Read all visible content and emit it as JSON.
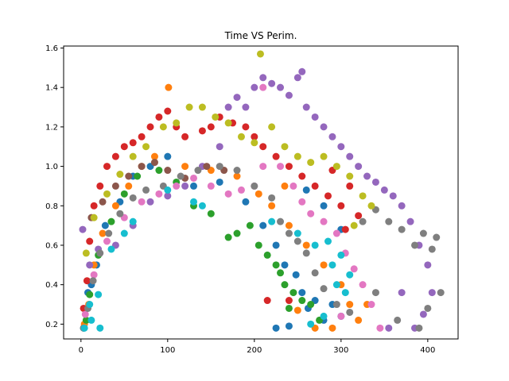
{
  "chart_data": {
    "type": "scatter",
    "title": "Time VS Perim.",
    "xlabel": "",
    "ylabel": "",
    "xlim": [
      -20,
      435
    ],
    "ylim": [
      0.125,
      1.61
    ],
    "xticks": [
      0,
      100,
      200,
      300,
      400
    ],
    "yticks": [
      0.2,
      0.4,
      0.6,
      0.8,
      1.0,
      1.2,
      1.4,
      1.6
    ],
    "xtick_labels": [
      "0",
      "100",
      "200",
      "300",
      "400"
    ],
    "ytick_labels": [
      "0.2",
      "0.4",
      "0.6",
      "0.8",
      "1.0",
      "1.2",
      "1.4",
      "1.6"
    ],
    "grid": false,
    "legend": "none",
    "series": [
      {
        "color": "#1f77b4",
        "points": [
          [
            3,
            0.18
          ],
          [
            8,
            0.36
          ],
          [
            12,
            0.4
          ],
          [
            18,
            0.5
          ],
          [
            28,
            0.7
          ],
          [
            45,
            0.82
          ],
          [
            60,
            0.95
          ],
          [
            80,
            1.0
          ],
          [
            100,
            1.05
          ],
          [
            130,
            0.9
          ],
          [
            160,
            0.92
          ],
          [
            190,
            0.82
          ],
          [
            210,
            0.7
          ],
          [
            225,
            0.6
          ],
          [
            235,
            0.5
          ],
          [
            248,
            0.45
          ],
          [
            255,
            0.36
          ],
          [
            262,
            0.28
          ],
          [
            270,
            0.32
          ],
          [
            280,
            0.22
          ],
          [
            240,
            0.19
          ],
          [
            225,
            0.18
          ],
          [
            290,
            0.3
          ],
          [
            300,
            0.24
          ],
          [
            260,
            0.88
          ],
          [
            280,
            0.8
          ],
          [
            300,
            0.68
          ]
        ]
      },
      {
        "color": "#ff7f0e",
        "points": [
          [
            4,
            0.2
          ],
          [
            9,
            0.3
          ],
          [
            15,
            0.5
          ],
          [
            25,
            0.66
          ],
          [
            40,
            0.8
          ],
          [
            55,
            0.9
          ],
          [
            70,
            1.0
          ],
          [
            85,
            1.05
          ],
          [
            101,
            1.4
          ],
          [
            120,
            1.0
          ],
          [
            150,
            0.98
          ],
          [
            180,
            0.95
          ],
          [
            205,
            0.86
          ],
          [
            220,
            0.8
          ],
          [
            240,
            0.7
          ],
          [
            260,
            0.6
          ],
          [
            280,
            0.5
          ],
          [
            300,
            0.4
          ],
          [
            310,
            0.3
          ],
          [
            320,
            0.22
          ],
          [
            290,
            0.18
          ],
          [
            270,
            0.18
          ],
          [
            250,
            0.27
          ],
          [
            330,
            0.3
          ],
          [
            235,
            0.9
          ]
        ]
      },
      {
        "color": "#2ca02c",
        "points": [
          [
            6,
            0.22
          ],
          [
            10,
            0.35
          ],
          [
            20,
            0.55
          ],
          [
            35,
            0.72
          ],
          [
            50,
            0.86
          ],
          [
            65,
            0.95
          ],
          [
            90,
            0.98
          ],
          [
            110,
            0.92
          ],
          [
            130,
            0.8
          ],
          [
            150,
            0.76
          ],
          [
            170,
            0.64
          ],
          [
            180,
            0.66
          ],
          [
            195,
            0.7
          ],
          [
            205,
            0.6
          ],
          [
            215,
            0.55
          ],
          [
            225,
            0.5
          ],
          [
            235,
            0.4
          ],
          [
            245,
            0.36
          ],
          [
            255,
            0.32
          ],
          [
            265,
            0.3
          ],
          [
            275,
            0.22
          ],
          [
            240,
            0.28
          ],
          [
            230,
            0.46
          ]
        ]
      },
      {
        "color": "#d62728",
        "points": [
          [
            3,
            0.28
          ],
          [
            7,
            0.42
          ],
          [
            10,
            0.62
          ],
          [
            15,
            0.8
          ],
          [
            22,
            0.9
          ],
          [
            30,
            1.0
          ],
          [
            40,
            1.05
          ],
          [
            50,
            1.1
          ],
          [
            60,
            1.12
          ],
          [
            70,
            1.15
          ],
          [
            80,
            1.2
          ],
          [
            90,
            1.25
          ],
          [
            100,
            1.28
          ],
          [
            110,
            1.2
          ],
          [
            120,
            1.15
          ],
          [
            140,
            1.18
          ],
          [
            150,
            1.2
          ],
          [
            160,
            1.25
          ],
          [
            175,
            1.22
          ],
          [
            190,
            1.2
          ],
          [
            200,
            1.15
          ],
          [
            210,
            1.1
          ],
          [
            225,
            1.05
          ],
          [
            240,
            1.0
          ],
          [
            255,
            0.95
          ],
          [
            270,
            0.9
          ],
          [
            285,
            0.85
          ],
          [
            300,
            0.8
          ],
          [
            310,
            0.9
          ],
          [
            320,
            0.75
          ],
          [
            305,
            0.68
          ],
          [
            290,
            0.98
          ],
          [
            240,
            0.32
          ],
          [
            215,
            0.32
          ]
        ]
      },
      {
        "color": "#9467bd",
        "points": [
          [
            2,
            0.68
          ],
          [
            10,
            0.5
          ],
          [
            20,
            0.58
          ],
          [
            40,
            0.6
          ],
          [
            60,
            0.7
          ],
          [
            80,
            0.82
          ],
          [
            100,
            0.85
          ],
          [
            120,
            0.9
          ],
          [
            140,
            1.0
          ],
          [
            160,
            1.1
          ],
          [
            170,
            1.3
          ],
          [
            180,
            1.35
          ],
          [
            190,
            1.3
          ],
          [
            200,
            1.4
          ],
          [
            210,
            1.45
          ],
          [
            220,
            1.42
          ],
          [
            230,
            1.4
          ],
          [
            240,
            1.36
          ],
          [
            250,
            1.45
          ],
          [
            255,
            1.48
          ],
          [
            260,
            1.3
          ],
          [
            270,
            1.25
          ],
          [
            280,
            1.2
          ],
          [
            290,
            1.15
          ],
          [
            300,
            1.1
          ],
          [
            310,
            1.05
          ],
          [
            320,
            1.0
          ],
          [
            330,
            0.95
          ],
          [
            340,
            0.92
          ],
          [
            350,
            0.88
          ],
          [
            360,
            0.85
          ],
          [
            370,
            0.8
          ],
          [
            380,
            0.72
          ],
          [
            390,
            0.6
          ],
          [
            400,
            0.5
          ],
          [
            405,
            0.36
          ],
          [
            395,
            0.25
          ],
          [
            385,
            0.18
          ],
          [
            370,
            0.36
          ],
          [
            355,
            0.18
          ]
        ]
      },
      {
        "color": "#8c564b",
        "points": [
          [
            12,
            0.74
          ],
          [
            25,
            0.82
          ],
          [
            40,
            0.9
          ],
          [
            55,
            0.95
          ],
          [
            70,
            1.0
          ],
          [
            85,
            1.02
          ],
          [
            100,
            0.98
          ],
          [
            120,
            0.94
          ],
          [
            145,
            1.0
          ],
          [
            165,
            0.98
          ]
        ]
      },
      {
        "color": "#e377c2",
        "points": [
          [
            5,
            0.25
          ],
          [
            15,
            0.45
          ],
          [
            30,
            0.62
          ],
          [
            50,
            0.74
          ],
          [
            70,
            0.82
          ],
          [
            90,
            0.86
          ],
          [
            110,
            0.9
          ],
          [
            130,
            0.94
          ],
          [
            150,
            0.9
          ],
          [
            170,
            0.86
          ],
          [
            185,
            0.88
          ],
          [
            200,
            0.9
          ],
          [
            210,
            1.0
          ],
          [
            230,
            1.0
          ],
          [
            245,
            0.9
          ],
          [
            255,
            0.82
          ],
          [
            265,
            0.76
          ],
          [
            280,
            0.72
          ],
          [
            295,
            0.66
          ],
          [
            305,
            0.56
          ],
          [
            315,
            0.48
          ],
          [
            325,
            0.4
          ],
          [
            335,
            0.3
          ],
          [
            345,
            0.18
          ],
          [
            300,
            0.24
          ],
          [
            210,
            1.4
          ]
        ]
      },
      {
        "color": "#7f7f7f",
        "points": [
          [
            3,
            0.18
          ],
          [
            8,
            0.28
          ],
          [
            14,
            0.42
          ],
          [
            22,
            0.56
          ],
          [
            32,
            0.66
          ],
          [
            45,
            0.76
          ],
          [
            60,
            0.84
          ],
          [
            75,
            0.88
          ],
          [
            95,
            0.9
          ],
          [
            115,
            0.95
          ],
          [
            135,
            0.98
          ],
          [
            160,
            1.0
          ],
          [
            180,
            0.98
          ],
          [
            200,
            0.9
          ],
          [
            220,
            0.84
          ],
          [
            230,
            0.72
          ],
          [
            240,
            0.66
          ],
          [
            250,
            0.62
          ],
          [
            260,
            0.56
          ],
          [
            270,
            0.46
          ],
          [
            280,
            0.38
          ],
          [
            295,
            0.3
          ],
          [
            310,
            0.26
          ],
          [
            325,
            0.72
          ],
          [
            340,
            0.78
          ],
          [
            355,
            0.72
          ],
          [
            370,
            0.68
          ],
          [
            385,
            0.6
          ],
          [
            395,
            0.66
          ],
          [
            405,
            0.58
          ],
          [
            410,
            0.64
          ],
          [
            415,
            0.36
          ],
          [
            400,
            0.28
          ],
          [
            390,
            0.18
          ],
          [
            365,
            0.22
          ],
          [
            340,
            0.36
          ]
        ]
      },
      {
        "color": "#bcbd22",
        "points": [
          [
            6,
            0.56
          ],
          [
            15,
            0.74
          ],
          [
            30,
            0.86
          ],
          [
            45,
            0.96
          ],
          [
            60,
            1.05
          ],
          [
            75,
            1.1
          ],
          [
            95,
            1.2
          ],
          [
            110,
            1.22
          ],
          [
            125,
            1.3
          ],
          [
            140,
            1.3
          ],
          [
            155,
            1.25
          ],
          [
            170,
            1.22
          ],
          [
            185,
            1.15
          ],
          [
            200,
            1.12
          ],
          [
            207,
            1.57
          ],
          [
            220,
            1.2
          ],
          [
            235,
            1.1
          ],
          [
            250,
            1.05
          ],
          [
            265,
            1.02
          ],
          [
            280,
            1.05
          ],
          [
            295,
            1.0
          ],
          [
            310,
            0.95
          ],
          [
            325,
            0.85
          ],
          [
            335,
            0.8
          ],
          [
            315,
            0.7
          ]
        ]
      },
      {
        "color": "#17becf",
        "points": [
          [
            4,
            0.18
          ],
          [
            12,
            0.22
          ],
          [
            22,
            0.18
          ],
          [
            10,
            0.3
          ],
          [
            20,
            0.35
          ],
          [
            35,
            0.58
          ],
          [
            50,
            0.66
          ],
          [
            60,
            0.72
          ],
          [
            100,
            0.88
          ],
          [
            130,
            0.82
          ],
          [
            140,
            0.8
          ],
          [
            220,
            0.72
          ],
          [
            250,
            0.66
          ],
          [
            270,
            0.6
          ],
          [
            285,
            0.62
          ],
          [
            300,
            0.55
          ],
          [
            290,
            0.5
          ],
          [
            310,
            0.45
          ],
          [
            295,
            0.4
          ],
          [
            305,
            0.36
          ],
          [
            280,
            0.24
          ],
          [
            265,
            0.2
          ]
        ]
      }
    ]
  }
}
